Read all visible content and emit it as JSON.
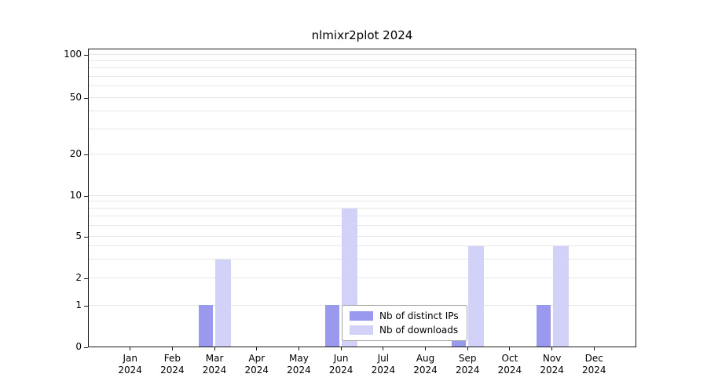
{
  "figure": {
    "title": "nlmixr2plot 2024"
  },
  "chart_data": {
    "type": "bar",
    "title": "nlmixr2plot 2024",
    "categories": [
      "Jan 2024",
      "Feb 2024",
      "Mar 2024",
      "Apr 2024",
      "May 2024",
      "Jun 2024",
      "Jul 2024",
      "Aug 2024",
      "Sep 2024",
      "Oct 2024",
      "Nov 2024",
      "Dec 2024"
    ],
    "x_tick_months": [
      "Jan",
      "Feb",
      "Mar",
      "Apr",
      "May",
      "Jun",
      "Jul",
      "Aug",
      "Sep",
      "Oct",
      "Nov",
      "Dec"
    ],
    "x_tick_year": "2024",
    "series": [
      {
        "name": "Nb of distinct IPs",
        "color": "#9999ee",
        "values": [
          0,
          0,
          1,
          0,
          0,
          1,
          0,
          0,
          1,
          0,
          1,
          0
        ]
      },
      {
        "name": "Nb of downloads",
        "color": "#d2d2f8",
        "values": [
          0,
          0,
          3,
          0,
          0,
          8,
          0,
          0,
          4,
          0,
          4,
          0
        ]
      }
    ],
    "y_ticks": [
      100,
      50,
      20,
      10,
      5,
      2,
      1,
      0
    ],
    "ylim": [
      0,
      100
    ],
    "y_scale": "log above 1, zero pinned to baseline",
    "grid": true,
    "legend": {
      "position": "lower center inside plot",
      "entries": [
        "Nb of distinct IPs",
        "Nb of downloads"
      ]
    }
  },
  "colors": {
    "grid": "#e7e7e7",
    "axis": "#1a1a1a",
    "legend_border": "#a6a6a6"
  }
}
